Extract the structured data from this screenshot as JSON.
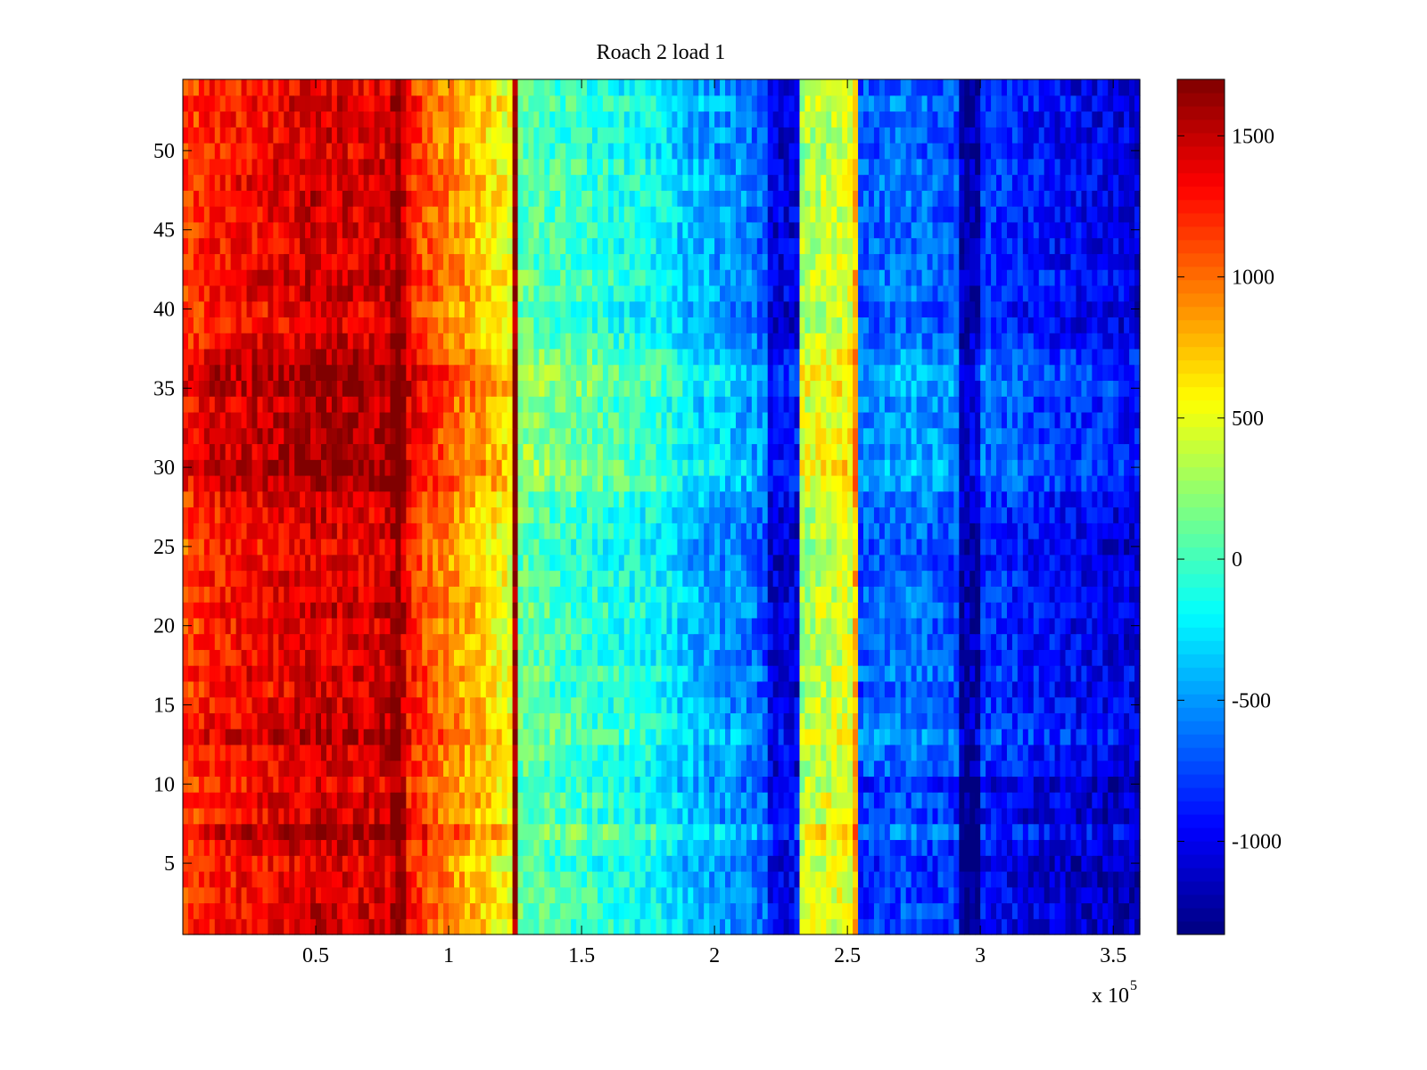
{
  "chart_data": {
    "type": "heatmap",
    "title": "Roach 2 load 1",
    "xlabel": "",
    "ylabel": "",
    "x_multiplier_text": "x 10",
    "x_multiplier_exponent": "5",
    "xlim": [
      0,
      3.6
    ],
    "ylim": [
      0.5,
      54.5
    ],
    "xticks": [
      0.5,
      1,
      1.5,
      2,
      2.5,
      3,
      3.5
    ],
    "xtick_labels": [
      "0.5",
      "1",
      "1.5",
      "2",
      "2.5",
      "3",
      "3.5"
    ],
    "yticks": [
      5,
      10,
      15,
      20,
      25,
      30,
      35,
      40,
      45,
      50
    ],
    "ytick_labels": [
      "5",
      "10",
      "15",
      "20",
      "25",
      "30",
      "35",
      "40",
      "45",
      "50"
    ],
    "rows": 54,
    "colormap": "jet",
    "colorbar": {
      "range": [
        -1330,
        1700
      ],
      "ticks": [
        -1000,
        -500,
        0,
        500,
        1000,
        1500
      ],
      "tick_labels": [
        "-1000",
        "-500",
        "0",
        "500",
        "1000",
        "1500"
      ]
    },
    "column_profile": [
      {
        "x": 0.0,
        "value": 1100
      },
      {
        "x": 0.1,
        "value": 1250
      },
      {
        "x": 0.35,
        "value": 1350
      },
      {
        "x": 0.5,
        "value": 1450
      },
      {
        "x": 0.7,
        "value": 1400
      },
      {
        "x": 0.78,
        "value": 1450
      },
      {
        "x": 0.8,
        "value": 1700
      },
      {
        "x": 0.82,
        "value": 1700
      },
      {
        "x": 0.84,
        "value": 1250
      },
      {
        "x": 0.95,
        "value": 1000
      },
      {
        "x": 1.1,
        "value": 750
      },
      {
        "x": 1.2,
        "value": 550
      },
      {
        "x": 1.23,
        "value": 500
      },
      {
        "x": 1.24,
        "value": 1650
      },
      {
        "x": 1.26,
        "value": 1650
      },
      {
        "x": 1.27,
        "value": 100
      },
      {
        "x": 1.4,
        "value": 0
      },
      {
        "x": 1.6,
        "value": -100
      },
      {
        "x": 1.8,
        "value": -200
      },
      {
        "x": 1.9,
        "value": -400
      },
      {
        "x": 2.1,
        "value": -550
      },
      {
        "x": 2.2,
        "value": -700
      },
      {
        "x": 2.21,
        "value": -1050
      },
      {
        "x": 2.32,
        "value": -1050
      },
      {
        "x": 2.33,
        "value": 300
      },
      {
        "x": 2.52,
        "value": 450
      },
      {
        "x": 2.54,
        "value": 1100
      },
      {
        "x": 2.55,
        "value": -700
      },
      {
        "x": 2.7,
        "value": -600
      },
      {
        "x": 2.92,
        "value": -700
      },
      {
        "x": 2.93,
        "value": -1200
      },
      {
        "x": 3.0,
        "value": -1200
      },
      {
        "x": 3.01,
        "value": -800
      },
      {
        "x": 3.3,
        "value": -950
      },
      {
        "x": 3.6,
        "value": -1050
      }
    ],
    "notes_rows": {
      "cooler_band_rows": [
        1,
        10
      ],
      "hot_rows": [
        7,
        13,
        29,
        30,
        31,
        32,
        33,
        34,
        35,
        36,
        37
      ]
    }
  }
}
